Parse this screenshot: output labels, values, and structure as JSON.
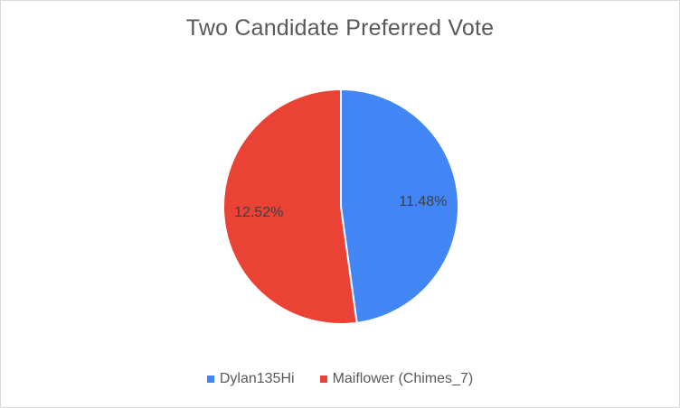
{
  "chart_data": {
    "type": "pie",
    "title": "Two Candidate Preferred Vote",
    "slices": [
      {
        "name": "Dylan135Hi",
        "value": 11.48,
        "label": "11.48%",
        "color": "#4285f4"
      },
      {
        "name": "Maiflower (Chimes_7)",
        "value": 12.52,
        "label": "12.52%",
        "color": "#ea4335"
      }
    ],
    "legend_position": "bottom"
  }
}
